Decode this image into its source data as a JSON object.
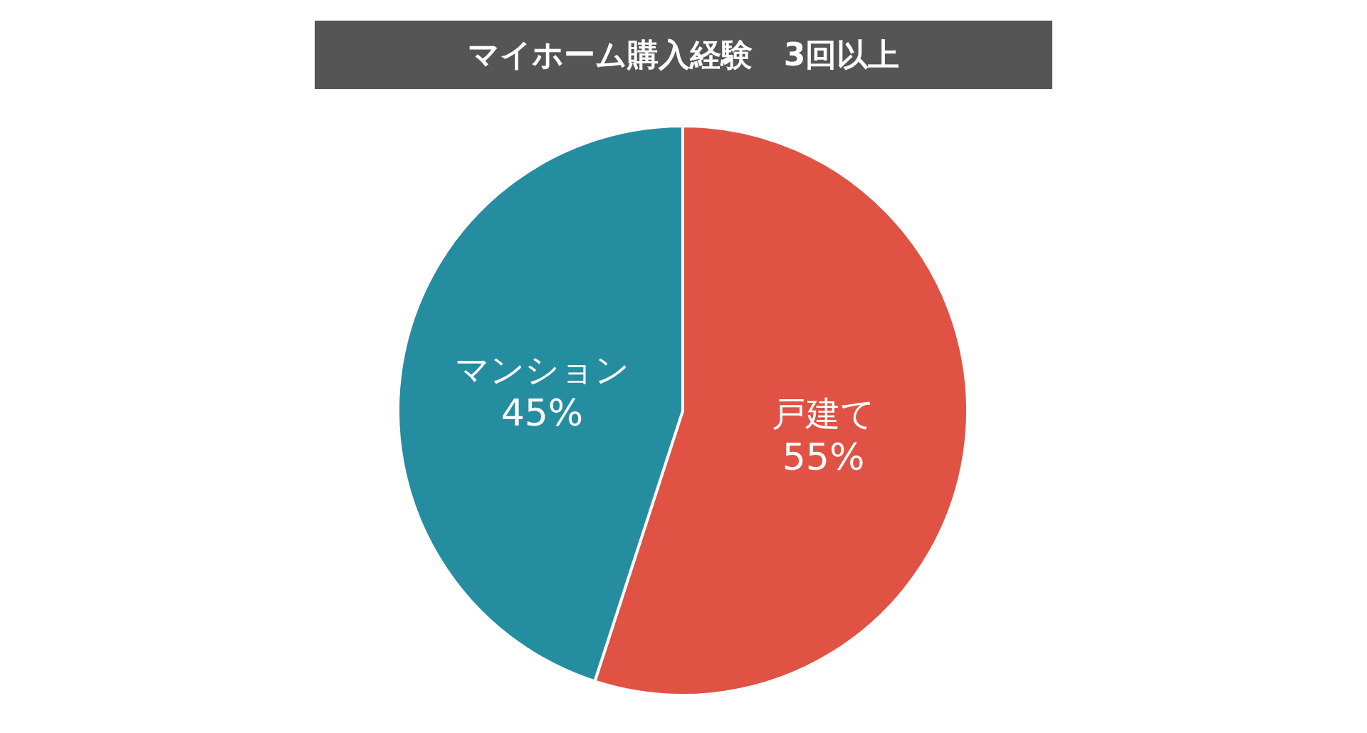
{
  "chart_data": {
    "type": "pie",
    "title": "マイホーム購入経験　3回以上",
    "categories": [
      "戸建て",
      "マンション"
    ],
    "values": [
      55,
      45
    ],
    "colors": [
      "#e05244",
      "#258da0"
    ],
    "value_labels": [
      "55%",
      "45%"
    ]
  }
}
